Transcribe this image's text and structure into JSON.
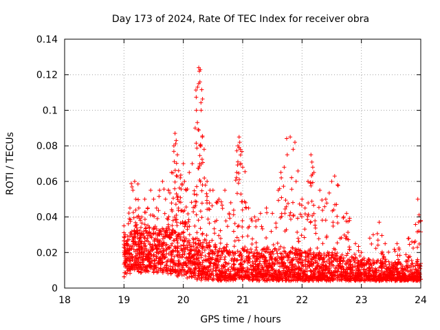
{
  "chart_data": {
    "type": "scatter",
    "title": "Day 173 of 2024, Rate Of TEC Index for receiver obra",
    "xlabel": "GPS time / hours",
    "ylabel": "ROTI / TECUs",
    "xlim": [
      18,
      24
    ],
    "ylim": [
      0,
      0.14
    ],
    "xticks": [
      "18",
      "19",
      "20",
      "21",
      "22",
      "23",
      "24"
    ],
    "yticks": [
      "0",
      "0.02",
      "0.04",
      "0.06",
      "0.08",
      "0.1",
      "0.12",
      "0.14"
    ],
    "grid": true,
    "marker": "+",
    "color": "#ff0000",
    "seed": 173,
    "series": [
      {
        "name": "ROTI",
        "x": [
          19.0,
          19.02,
          19.05,
          19.1,
          19.15,
          19.18,
          19.2,
          19.22,
          19.25,
          19.3,
          19.35,
          19.4,
          19.45,
          19.5,
          19.55,
          19.6,
          19.65,
          19.7,
          19.75,
          19.8,
          19.84,
          19.86,
          19.88,
          19.9,
          19.92,
          19.95,
          19.98,
          20.0,
          20.02,
          20.05,
          20.1,
          20.15,
          20.2,
          20.22,
          20.24,
          20.26,
          20.27,
          20.28,
          20.3,
          20.32,
          20.35,
          20.4,
          20.45,
          20.5,
          20.6,
          20.7,
          20.8,
          20.9,
          20.92,
          20.94,
          20.95,
          20.96,
          21.0,
          21.05,
          21.1,
          21.2,
          21.3,
          21.4,
          21.5,
          21.6,
          21.65,
          21.7,
          21.75,
          21.8,
          21.85,
          21.88,
          21.9,
          22.0,
          22.05,
          22.1,
          22.15,
          22.18,
          22.2,
          22.3,
          22.4,
          22.5,
          22.55,
          22.6,
          22.7,
          22.75,
          22.8,
          22.9,
          23.0,
          23.2,
          23.3,
          23.4,
          23.6,
          23.8,
          23.85,
          23.95,
          24.0
        ],
        "y": [
          0.035,
          0.03,
          0.025,
          0.045,
          0.055,
          0.06,
          0.05,
          0.04,
          0.045,
          0.04,
          0.05,
          0.045,
          0.055,
          0.05,
          0.045,
          0.055,
          0.06,
          0.05,
          0.055,
          0.065,
          0.08,
          0.087,
          0.083,
          0.075,
          0.066,
          0.062,
          0.058,
          0.07,
          0.06,
          0.055,
          0.065,
          0.07,
          0.09,
          0.1,
          0.113,
          0.124,
          0.122,
          0.116,
          0.1,
          0.085,
          0.078,
          0.06,
          0.055,
          0.055,
          0.05,
          0.055,
          0.048,
          0.065,
          0.08,
          0.085,
          0.082,
          0.078,
          0.068,
          0.048,
          0.045,
          0.04,
          0.042,
          0.045,
          0.042,
          0.055,
          0.062,
          0.068,
          0.075,
          0.085,
          0.078,
          0.082,
          0.06,
          0.05,
          0.045,
          0.06,
          0.075,
          0.068,
          0.065,
          0.055,
          0.05,
          0.06,
          0.063,
          0.058,
          0.04,
          0.042,
          0.038,
          0.025,
          0.02,
          0.03,
          0.037,
          0.025,
          0.025,
          0.028,
          0.026,
          0.05,
          0.038
        ]
      }
    ],
    "envelope": {
      "x": [
        19.0,
        19.2,
        19.5,
        19.8,
        20.0,
        20.3,
        20.6,
        21.0,
        21.3,
        21.7,
        22.0,
        22.3,
        22.6,
        22.9,
        23.2,
        23.6,
        24.0
      ],
      "baseline": [
        0.016,
        0.018,
        0.018,
        0.017,
        0.016,
        0.014,
        0.013,
        0.013,
        0.012,
        0.012,
        0.012,
        0.012,
        0.012,
        0.012,
        0.011,
        0.011,
        0.011
      ],
      "spread": [
        0.02,
        0.024,
        0.025,
        0.024,
        0.022,
        0.02,
        0.018,
        0.018,
        0.017,
        0.018,
        0.017,
        0.016,
        0.015,
        0.012,
        0.012,
        0.012,
        0.012
      ],
      "count": 2600
    }
  }
}
